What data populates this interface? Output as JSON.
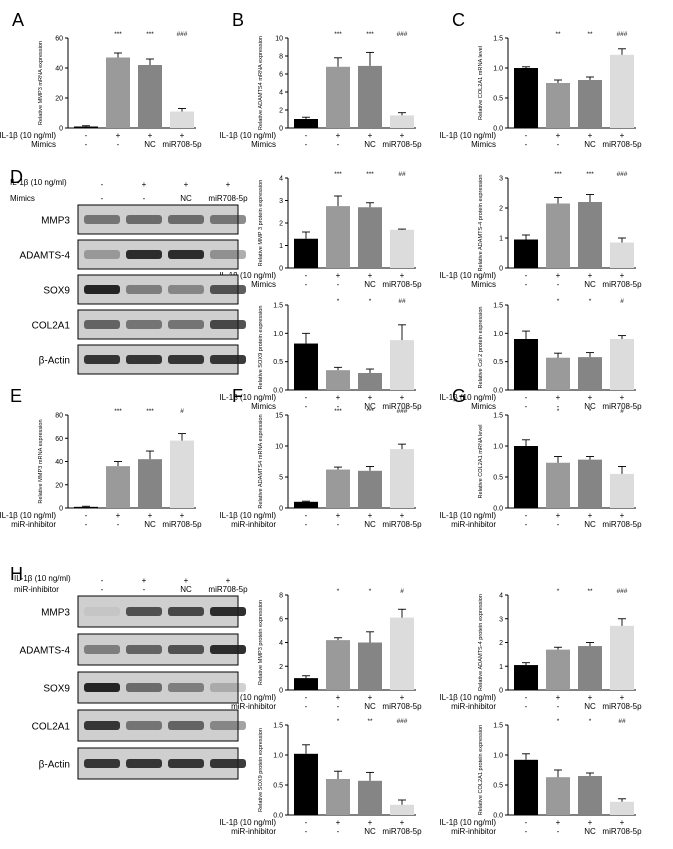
{
  "colors": {
    "ctrl": "#000000",
    "il": "#9a9a9a",
    "nc": "#858585",
    "mir": "#dcdcdc",
    "axis": "#000000",
    "band": "#1a1a1a",
    "blot_bg": "#cfcfcf"
  },
  "treatment_labels": {
    "il": "IL-1β (10 ng/ml)",
    "mimics": "Mimics",
    "inhibitor": "miR-inhibitor",
    "rows_mimics": [
      [
        "-",
        "+",
        "+",
        "+"
      ],
      [
        "-",
        "-",
        "NC",
        "miR708-5p"
      ]
    ],
    "rows_inhibitor": [
      [
        "-",
        "+",
        "+",
        "+"
      ],
      [
        "-",
        "-",
        "NC",
        "miR708-5p"
      ]
    ]
  },
  "panel_letters": {
    "A": "A",
    "B": "B",
    "C": "C",
    "D": "D",
    "E": "E",
    "F": "F",
    "G": "G",
    "H": "H"
  },
  "blots": {
    "D": {
      "il_row": [
        "-",
        "+",
        "+",
        "+"
      ],
      "treat_row": [
        "-",
        "-",
        "NC",
        "miR708-5p"
      ],
      "bands": [
        "MMP3",
        "ADAMTS-4",
        "SOX9",
        "COL2A1",
        "β-Actin"
      ],
      "intensity": [
        [
          0.5,
          0.55,
          0.55,
          0.5
        ],
        [
          0.3,
          0.9,
          0.9,
          0.35
        ],
        [
          0.95,
          0.45,
          0.4,
          0.7
        ],
        [
          0.6,
          0.5,
          0.5,
          0.75
        ],
        [
          0.85,
          0.85,
          0.85,
          0.85
        ]
      ]
    },
    "H": {
      "il_row": [
        "-",
        "+",
        "+",
        "+"
      ],
      "treat_row": [
        "-",
        "-",
        "NC",
        "miR708-5p"
      ],
      "bands": [
        "MMP3",
        "ADAMTS-4",
        "SOX9",
        "COL2A1",
        "β-Actin"
      ],
      "intensity": [
        [
          0.05,
          0.7,
          0.75,
          0.9
        ],
        [
          0.45,
          0.6,
          0.7,
          0.9
        ],
        [
          0.95,
          0.55,
          0.45,
          0.2
        ],
        [
          0.85,
          0.5,
          0.6,
          0.4
        ],
        [
          0.85,
          0.85,
          0.85,
          0.85
        ]
      ]
    }
  },
  "chart_data": [
    {
      "id": "A",
      "type": "bar",
      "ylabel": "Relative MMP3 mRNA expression",
      "ylim": [
        0,
        60
      ],
      "ticks": [
        0,
        20,
        40,
        60
      ],
      "tick_labels": [
        "0",
        "20",
        "40",
        "60"
      ],
      "values": [
        1,
        47,
        42,
        11
      ],
      "errors": [
        0.5,
        3,
        4,
        2
      ],
      "sig": [
        "",
        "***",
        "***",
        "###"
      ],
      "treatment": "mimics"
    },
    {
      "id": "B",
      "type": "bar",
      "ylabel": "Relative ADAMTS4 mRNA expression",
      "ylim": [
        0,
        10
      ],
      "ticks": [
        0,
        2,
        4,
        6,
        8,
        10
      ],
      "tick_labels": [
        "0",
        "2",
        "4",
        "6",
        "8",
        "10"
      ],
      "values": [
        1,
        6.8,
        6.9,
        1.4
      ],
      "errors": [
        0.2,
        1.0,
        1.5,
        0.3
      ],
      "sig": [
        "",
        "***",
        "***",
        "###"
      ],
      "treatment": "mimics"
    },
    {
      "id": "C",
      "type": "bar",
      "ylabel": "Relative COL2A1 mRNA level",
      "ylim": [
        0,
        1.5
      ],
      "ticks": [
        0,
        0.5,
        1.0,
        1.5
      ],
      "tick_labels": [
        "0.0",
        "0.5",
        "1.0",
        "1.5"
      ],
      "values": [
        1.0,
        0.75,
        0.8,
        1.22
      ],
      "errors": [
        0.02,
        0.05,
        0.05,
        0.1
      ],
      "sig": [
        "",
        "**",
        "**",
        "###"
      ],
      "treatment": "mimics"
    },
    {
      "id": "D1",
      "type": "bar",
      "ylabel": "Relative MMP 3 protein expression",
      "ylim": [
        0,
        4
      ],
      "ticks": [
        0,
        1,
        2,
        3,
        4
      ],
      "tick_labels": [
        "0",
        "1",
        "2",
        "3",
        "4"
      ],
      "values": [
        1.3,
        2.75,
        2.7,
        1.7
      ],
      "errors": [
        0.3,
        0.45,
        0.2,
        0.03
      ],
      "sig": [
        "",
        "***",
        "***",
        "##"
      ],
      "treatment": "mimics"
    },
    {
      "id": "D2",
      "type": "bar",
      "ylabel": "Relative ADAMTS-4 protein expression",
      "ylim": [
        0,
        3
      ],
      "ticks": [
        0,
        1,
        2,
        3
      ],
      "tick_labels": [
        "0",
        "1",
        "2",
        "3"
      ],
      "values": [
        0.95,
        2.15,
        2.2,
        0.85
      ],
      "errors": [
        0.15,
        0.2,
        0.25,
        0.15
      ],
      "sig": [
        "",
        "***",
        "***",
        "###"
      ],
      "treatment": "mimics"
    },
    {
      "id": "D3",
      "type": "bar",
      "ylabel": "Relative SOX9 protein expression",
      "ylim": [
        0,
        1.5
      ],
      "ticks": [
        0,
        0.5,
        1.0,
        1.5
      ],
      "tick_labels": [
        "0.0",
        "0.5",
        "1.0",
        "1.5"
      ],
      "values": [
        0.82,
        0.35,
        0.3,
        0.88
      ],
      "errors": [
        0.18,
        0.05,
        0.07,
        0.27
      ],
      "sig": [
        "",
        "*",
        "*",
        "##"
      ],
      "treatment": "mimics"
    },
    {
      "id": "D4",
      "type": "bar",
      "ylabel": "Relative Col 2 protein expression",
      "ylim": [
        0,
        1.5
      ],
      "ticks": [
        0,
        0.5,
        1.0,
        1.5
      ],
      "tick_labels": [
        "0.0",
        "0.5",
        "1.0",
        "1.5"
      ],
      "values": [
        0.9,
        0.57,
        0.58,
        0.9
      ],
      "errors": [
        0.14,
        0.08,
        0.08,
        0.06
      ],
      "sig": [
        "",
        "*",
        "*",
        "#"
      ],
      "treatment": "mimics"
    },
    {
      "id": "E",
      "type": "bar",
      "ylabel": "Relative MMP3 mRNA expression",
      "ylim": [
        0,
        80
      ],
      "ticks": [
        0,
        20,
        40,
        60,
        80
      ],
      "tick_labels": [
        "0",
        "20",
        "40",
        "60",
        "80"
      ],
      "values": [
        1,
        36,
        42,
        58
      ],
      "errors": [
        0.5,
        4,
        7,
        6
      ],
      "sig": [
        "",
        "***",
        "***",
        "#"
      ],
      "treatment": "inhibitor"
    },
    {
      "id": "F",
      "type": "bar",
      "ylabel": "Relative ADAMTS4 mRNA expression",
      "ylim": [
        0,
        15
      ],
      "ticks": [
        0,
        5,
        10,
        15
      ],
      "tick_labels": [
        "0",
        "5",
        "10",
        "15"
      ],
      "values": [
        1,
        6.2,
        6.0,
        9.5
      ],
      "errors": [
        0.1,
        0.4,
        0.7,
        0.8
      ],
      "sig": [
        "",
        "***",
        "***",
        "###"
      ],
      "treatment": "inhibitor"
    },
    {
      "id": "G",
      "type": "bar",
      "ylabel": "Relative COL2A1 mRNA level",
      "ylim": [
        0,
        1.5
      ],
      "ticks": [
        0,
        0.5,
        1.0,
        1.5
      ],
      "tick_labels": [
        "0.0",
        "0.5",
        "1.0",
        "1.5"
      ],
      "values": [
        1.0,
        0.73,
        0.78,
        0.55
      ],
      "errors": [
        0.1,
        0.1,
        0.05,
        0.12
      ],
      "sig": [
        "",
        "*",
        "*",
        "#"
      ],
      "treatment": "inhibitor"
    },
    {
      "id": "H1",
      "type": "bar",
      "ylabel": "Relative MMP3 protein expression",
      "ylim": [
        0,
        8
      ],
      "ticks": [
        0,
        2,
        4,
        6,
        8
      ],
      "tick_labels": [
        "0",
        "2",
        "4",
        "6",
        "8"
      ],
      "values": [
        1.0,
        4.2,
        4.0,
        6.1
      ],
      "errors": [
        0.2,
        0.2,
        0.9,
        0.7
      ],
      "sig": [
        "",
        "*",
        "*",
        "#"
      ],
      "treatment": "inhibitor"
    },
    {
      "id": "H2",
      "type": "bar",
      "ylabel": "Relative ADAMTS-4 protein expression",
      "ylim": [
        0,
        4
      ],
      "ticks": [
        0,
        1,
        2,
        3,
        4
      ],
      "tick_labels": [
        "0",
        "1",
        "2",
        "3",
        "4"
      ],
      "values": [
        1.05,
        1.7,
        1.85,
        2.7
      ],
      "errors": [
        0.1,
        0.1,
        0.15,
        0.3
      ],
      "sig": [
        "",
        "*",
        "**",
        "###"
      ],
      "treatment": "inhibitor"
    },
    {
      "id": "H3",
      "type": "bar",
      "ylabel": "Relative SOX9 protein expression",
      "ylim": [
        0,
        1.5
      ],
      "ticks": [
        0,
        0.5,
        1.0,
        1.5
      ],
      "tick_labels": [
        "0.0",
        "0.5",
        "1.0",
        "1.5"
      ],
      "values": [
        1.02,
        0.6,
        0.57,
        0.17
      ],
      "errors": [
        0.15,
        0.13,
        0.14,
        0.08
      ],
      "sig": [
        "",
        "*",
        "**",
        "###"
      ],
      "treatment": "inhibitor"
    },
    {
      "id": "H4",
      "type": "bar",
      "ylabel": "Relative COL2A1 protein expression",
      "ylim": [
        0,
        1.5
      ],
      "ticks": [
        0,
        0.5,
        1.0,
        1.5
      ],
      "tick_labels": [
        "0.0",
        "0.5",
        "1.0",
        "1.5"
      ],
      "values": [
        0.92,
        0.63,
        0.65,
        0.22
      ],
      "errors": [
        0.1,
        0.12,
        0.05,
        0.05
      ],
      "sig": [
        "",
        "*",
        "*",
        "##"
      ],
      "treatment": "inhibitor"
    }
  ]
}
